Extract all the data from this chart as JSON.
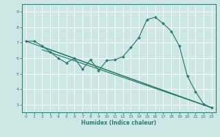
{
  "xlabel": "Humidex (Indice chaleur)",
  "bg_color": "#cde8e4",
  "grid_color": "#b0d8d2",
  "line_color": "#2d7d6e",
  "xlim": [
    -0.5,
    23.5
  ],
  "ylim": [
    2.5,
    9.5
  ],
  "xticks": [
    0,
    1,
    2,
    3,
    4,
    5,
    6,
    7,
    8,
    9,
    10,
    11,
    12,
    13,
    14,
    15,
    16,
    17,
    18,
    19,
    20,
    21,
    22,
    23
  ],
  "yticks": [
    3,
    4,
    5,
    6,
    7,
    8,
    9
  ],
  "curves": [
    {
      "x": [
        0,
        1,
        2,
        3,
        4,
        5,
        6,
        7,
        8,
        9,
        10,
        11,
        12,
        13,
        14,
        15,
        16,
        17,
        18,
        19,
        20,
        21,
        22,
        23
      ],
      "y": [
        7.1,
        7.1,
        6.8,
        6.4,
        6.0,
        5.7,
        6.0,
        5.3,
        5.9,
        5.2,
        5.85,
        5.9,
        6.1,
        6.7,
        7.35,
        8.5,
        8.65,
        8.25,
        7.75,
        6.8,
        4.85,
        3.85,
        3.05,
        2.8
      ],
      "marker": "D",
      "markersize": 2.0
    },
    {
      "x": [
        0,
        23
      ],
      "y": [
        7.1,
        2.8
      ],
      "marker": null,
      "markersize": 0
    },
    {
      "x": [
        2,
        23
      ],
      "y": [
        6.75,
        2.8
      ],
      "marker": null,
      "markersize": 0
    },
    {
      "x": [
        2,
        23
      ],
      "y": [
        6.55,
        2.8
      ],
      "marker": null,
      "markersize": 0
    }
  ]
}
